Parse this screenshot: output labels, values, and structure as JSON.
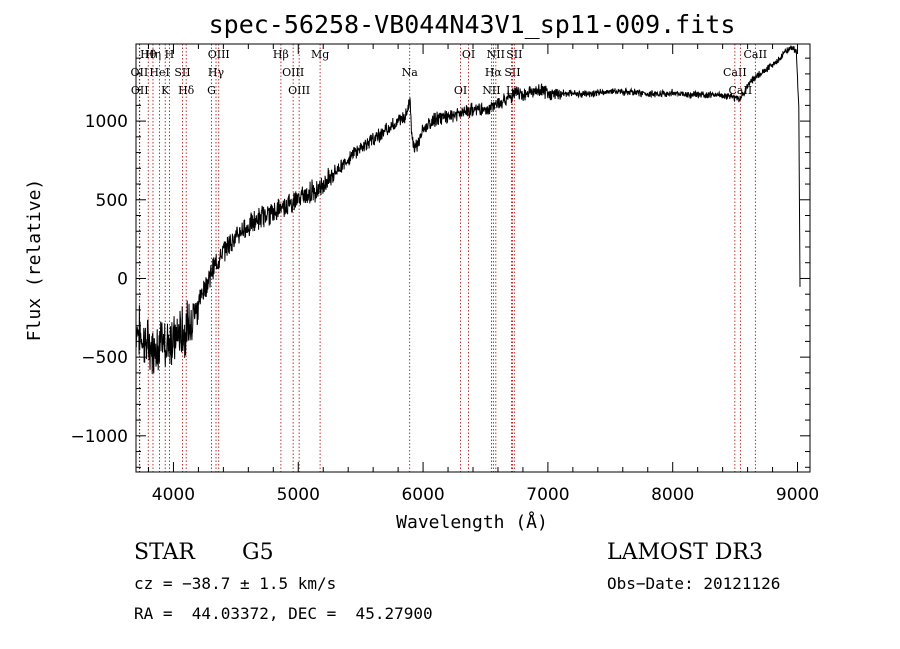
{
  "chart_data": {
    "type": "line",
    "title": "spec-56258-VB044N43V1_sp11-009.fits",
    "xlabel": "Wavelength (Å)",
    "ylabel": "Flux (relative)",
    "xlim": [
      3700,
      9100
    ],
    "ylim": [
      -1230,
      1490
    ],
    "xticks": [
      4000,
      5000,
      6000,
      7000,
      8000,
      9000
    ],
    "yticks": [
      -1000,
      -500,
      0,
      500,
      1000
    ],
    "xtick_labels": [
      "4000",
      "5000",
      "6000",
      "7000",
      "8000",
      "9000"
    ],
    "ytick_labels": [
      "−1000",
      "−500",
      "0",
      "500",
      "1000"
    ],
    "spectrum": {
      "x": [
        3700,
        3730,
        3760,
        3790,
        3820,
        3850,
        3880,
        3910,
        3940,
        3970,
        4000,
        4050,
        4100,
        4150,
        4200,
        4250,
        4300,
        4350,
        4400,
        4450,
        4500,
        4550,
        4600,
        4650,
        4700,
        4750,
        4800,
        4850,
        4900,
        4950,
        5000,
        5050,
        5100,
        5150,
        5200,
        5250,
        5300,
        5350,
        5400,
        5450,
        5500,
        5550,
        5600,
        5650,
        5700,
        5750,
        5800,
        5850,
        5880,
        5895,
        5910,
        5930,
        5960,
        6000,
        6050,
        6100,
        6150,
        6200,
        6250,
        6300,
        6350,
        6400,
        6450,
        6500,
        6550,
        6600,
        6650,
        6700,
        6750,
        6800,
        6850,
        6900,
        6950,
        7000,
        7100,
        7200,
        7300,
        7400,
        7500,
        7600,
        7700,
        7800,
        7900,
        8000,
        8100,
        8200,
        8300,
        8400,
        8450,
        8500,
        8540,
        8570,
        8600,
        8650,
        8700,
        8750,
        8800,
        8850,
        8900,
        8950,
        8990,
        9010,
        9020
      ],
      "y": [
        -300,
        -350,
        -400,
        -420,
        -440,
        -430,
        -480,
        -420,
        -440,
        -360,
        -400,
        -350,
        -330,
        -250,
        -150,
        -60,
        30,
        110,
        170,
        230,
        260,
        300,
        330,
        360,
        390,
        410,
        420,
        440,
        470,
        480,
        510,
        530,
        550,
        560,
        600,
        640,
        680,
        720,
        760,
        800,
        830,
        860,
        880,
        910,
        940,
        970,
        1000,
        1030,
        1080,
        1150,
        920,
        830,
        860,
        940,
        980,
        1010,
        1030,
        1020,
        1040,
        1050,
        1060,
        1070,
        1080,
        1060,
        1090,
        1110,
        1130,
        1160,
        1180,
        1170,
        1190,
        1180,
        1195,
        1170,
        1175,
        1180,
        1170,
        1180,
        1190,
        1185,
        1180,
        1175,
        1170,
        1180,
        1165,
        1170,
        1170,
        1160,
        1160,
        1150,
        1140,
        1180,
        1230,
        1270,
        1300,
        1330,
        1360,
        1390,
        1440,
        1470,
        1450,
        1100,
        -50
      ]
    },
    "annotation_lines": [
      {
        "label": "Hθ",
        "x": 3798
      },
      {
        "label": "OII",
        "x": 3727
      },
      {
        "label": "OII",
        "x": 3730
      },
      {
        "label": "Hη",
        "x": 3836
      },
      {
        "label": "HeI",
        "x": 3889
      },
      {
        "label": "K",
        "x": 3934
      },
      {
        "label": "H",
        "x": 3968
      },
      {
        "label": "SII",
        "x": 4072
      },
      {
        "label": "Hδ",
        "x": 4102
      },
      {
        "label": "OIII",
        "x": 4363
      },
      {
        "label": "Hγ",
        "x": 4341
      },
      {
        "label": "G",
        "x": 4305
      },
      {
        "label": "Hβ",
        "x": 4861
      },
      {
        "label": "OIII",
        "x": 4959
      },
      {
        "label": "OIII",
        "x": 5007
      },
      {
        "label": "Mg",
        "x": 5175
      },
      {
        "label": "Na",
        "x": 5893
      },
      {
        "label": "OI",
        "x": 6300
      },
      {
        "label": "OI",
        "x": 6364
      },
      {
        "label": "Hα",
        "x": 6563
      },
      {
        "label": "NII",
        "x": 6548
      },
      {
        "label": "NII",
        "x": 6583
      },
      {
        "label": "SII",
        "x": 6716
      },
      {
        "label": "Li",
        "x": 6708
      },
      {
        "label": "SII",
        "x": 6731
      },
      {
        "label": "CaII",
        "x": 8498
      },
      {
        "label": "CaII",
        "x": 8542
      },
      {
        "label": "CaII",
        "x": 8662
      }
    ]
  },
  "info": {
    "object_class": "STAR",
    "subclass": "G5",
    "redshift": "cz = −38.7 ± 1.5 km/s",
    "coords": "RA =  44.03372, DEC =  45.27900",
    "survey": "LAMOST DR3",
    "obs_date": "Obs−Date: 20121126"
  }
}
